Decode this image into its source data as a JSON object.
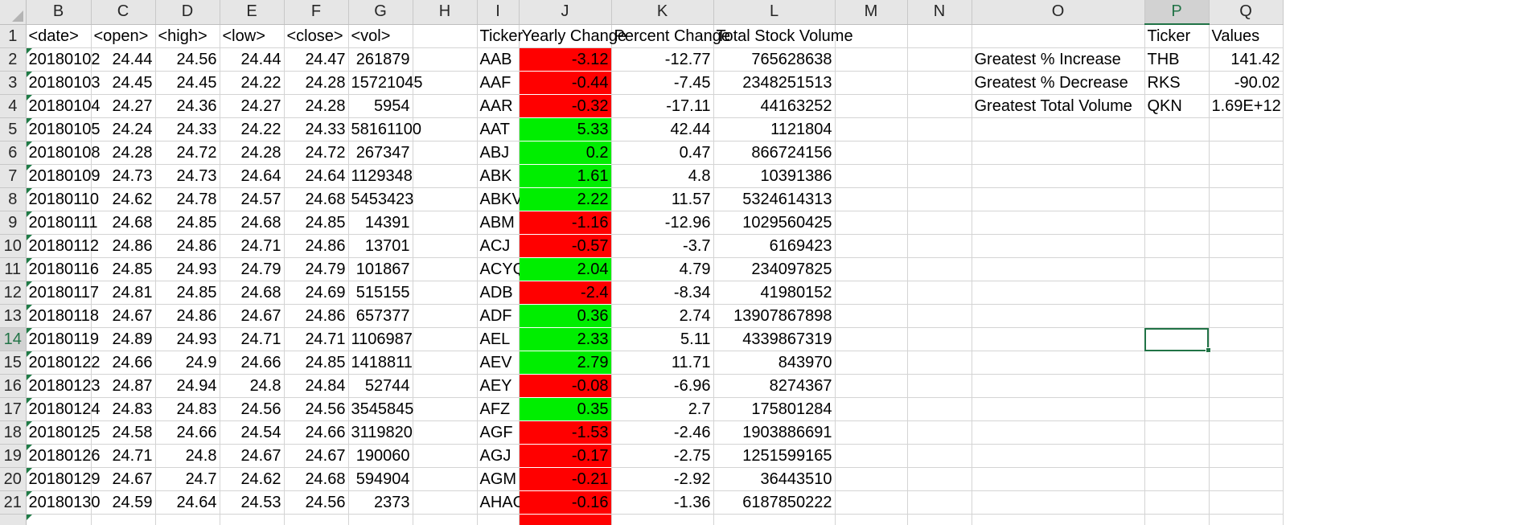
{
  "columns": [
    "B",
    "C",
    "D",
    "E",
    "F",
    "G",
    "H",
    "I",
    "J",
    "K",
    "L",
    "M",
    "N",
    "O",
    "P",
    "Q"
  ],
  "selected_column": "P",
  "selected_row": 14,
  "colors": {
    "increase": "#00ee00",
    "decrease": "#ff0000",
    "excel_green": "#217346"
  },
  "headers": {
    "date": "<date>",
    "open": "<open>",
    "high": "<high>",
    "low": "<low>",
    "close": "<close>",
    "vol": "<vol>",
    "ticker": "Ticker",
    "yearly_change": "Yearly Change",
    "percent_change": "Percent Change",
    "total_volume": "Total Stock Volume",
    "summary_ticker": "Ticker",
    "summary_values": "Values"
  },
  "rows": [
    {
      "date": "20180102",
      "open": "24.44",
      "high": "24.56",
      "low": "24.44",
      "close": "24.47",
      "vol": "261879",
      "ticker": "AAB",
      "yc": "-3.12",
      "pc": "-12.77",
      "tv": "765628638",
      "trend": "down"
    },
    {
      "date": "20180103",
      "open": "24.45",
      "high": "24.45",
      "low": "24.22",
      "close": "24.28",
      "vol": "15721045",
      "ticker": "AAF",
      "yc": "-0.44",
      "pc": "-7.45",
      "tv": "2348251513",
      "trend": "down"
    },
    {
      "date": "20180104",
      "open": "24.27",
      "high": "24.36",
      "low": "24.27",
      "close": "24.28",
      "vol": "5954",
      "ticker": "AAR",
      "yc": "-0.32",
      "pc": "-17.11",
      "tv": "44163252",
      "trend": "down"
    },
    {
      "date": "20180105",
      "open": "24.24",
      "high": "24.33",
      "low": "24.22",
      "close": "24.33",
      "vol": "58161100",
      "ticker": "AAT",
      "yc": "5.33",
      "pc": "42.44",
      "tv": "1121804",
      "trend": "up"
    },
    {
      "date": "20180108",
      "open": "24.28",
      "high": "24.72",
      "low": "24.28",
      "close": "24.72",
      "vol": "267347",
      "ticker": "ABJ",
      "yc": "0.2",
      "pc": "0.47",
      "tv": "866724156",
      "trend": "up"
    },
    {
      "date": "20180109",
      "open": "24.73",
      "high": "24.73",
      "low": "24.64",
      "close": "24.64",
      "vol": "1129348",
      "ticker": "ABK",
      "yc": "1.61",
      "pc": "4.8",
      "tv": "10391386",
      "trend": "up"
    },
    {
      "date": "20180110",
      "open": "24.62",
      "high": "24.78",
      "low": "24.57",
      "close": "24.68",
      "vol": "5453423",
      "ticker": "ABKV",
      "yc": "2.22",
      "pc": "11.57",
      "tv": "5324614313",
      "trend": "up"
    },
    {
      "date": "20180111",
      "open": "24.68",
      "high": "24.85",
      "low": "24.68",
      "close": "24.85",
      "vol": "14391",
      "ticker": "ABM",
      "yc": "-1.16",
      "pc": "-12.96",
      "tv": "1029560425",
      "trend": "down"
    },
    {
      "date": "20180112",
      "open": "24.86",
      "high": "24.86",
      "low": "24.71",
      "close": "24.86",
      "vol": "13701",
      "ticker": "ACJ",
      "yc": "-0.57",
      "pc": "-3.7",
      "tv": "6169423",
      "trend": "down"
    },
    {
      "date": "20180116",
      "open": "24.85",
      "high": "24.93",
      "low": "24.79",
      "close": "24.79",
      "vol": "101867",
      "ticker": "ACYQ",
      "yc": "2.04",
      "pc": "4.79",
      "tv": "234097825",
      "trend": "up"
    },
    {
      "date": "20180117",
      "open": "24.81",
      "high": "24.85",
      "low": "24.68",
      "close": "24.69",
      "vol": "515155",
      "ticker": "ADB",
      "yc": "-2.4",
      "pc": "-8.34",
      "tv": "41980152",
      "trend": "down"
    },
    {
      "date": "20180118",
      "open": "24.67",
      "high": "24.86",
      "low": "24.67",
      "close": "24.86",
      "vol": "657377",
      "ticker": "ADF",
      "yc": "0.36",
      "pc": "2.74",
      "tv": "13907867898",
      "trend": "up"
    },
    {
      "date": "20180119",
      "open": "24.89",
      "high": "24.93",
      "low": "24.71",
      "close": "24.71",
      "vol": "1106987",
      "ticker": "AEL",
      "yc": "2.33",
      "pc": "5.11",
      "tv": "4339867319",
      "trend": "up"
    },
    {
      "date": "20180122",
      "open": "24.66",
      "high": "24.9",
      "low": "24.66",
      "close": "24.85",
      "vol": "1418811",
      "ticker": "AEV",
      "yc": "2.79",
      "pc": "11.71",
      "tv": "843970",
      "trend": "up"
    },
    {
      "date": "20180123",
      "open": "24.87",
      "high": "24.94",
      "low": "24.8",
      "close": "24.84",
      "vol": "52744",
      "ticker": "AEY",
      "yc": "-0.08",
      "pc": "-6.96",
      "tv": "8274367",
      "trend": "down"
    },
    {
      "date": "20180124",
      "open": "24.83",
      "high": "24.83",
      "low": "24.56",
      "close": "24.56",
      "vol": "3545845",
      "ticker": "AFZ",
      "yc": "0.35",
      "pc": "2.7",
      "tv": "175801284",
      "trend": "up"
    },
    {
      "date": "20180125",
      "open": "24.58",
      "high": "24.66",
      "low": "24.54",
      "close": "24.66",
      "vol": "3119820",
      "ticker": "AGF",
      "yc": "-1.53",
      "pc": "-2.46",
      "tv": "1903886691",
      "trend": "down"
    },
    {
      "date": "20180126",
      "open": "24.71",
      "high": "24.8",
      "low": "24.67",
      "close": "24.67",
      "vol": "190060",
      "ticker": "AGJ",
      "yc": "-0.17",
      "pc": "-2.75",
      "tv": "1251599165",
      "trend": "down"
    },
    {
      "date": "20180129",
      "open": "24.67",
      "high": "24.7",
      "low": "24.62",
      "close": "24.68",
      "vol": "594904",
      "ticker": "AGM",
      "yc": "-0.21",
      "pc": "-2.92",
      "tv": "36443510",
      "trend": "down"
    },
    {
      "date": "20180130",
      "open": "24.59",
      "high": "24.64",
      "low": "24.53",
      "close": "24.56",
      "vol": "2373",
      "ticker": "AHAO",
      "yc": "-0.16",
      "pc": "-1.36",
      "tv": "6187850222",
      "trend": "down"
    }
  ],
  "summary": [
    {
      "label": "Greatest % Increase",
      "ticker": "THB",
      "value": "141.42"
    },
    {
      "label": "Greatest % Decrease",
      "ticker": "RKS",
      "value": "-90.02"
    },
    {
      "label": "Greatest Total Volume",
      "ticker": "QKN",
      "value": "1.69E+12"
    }
  ]
}
